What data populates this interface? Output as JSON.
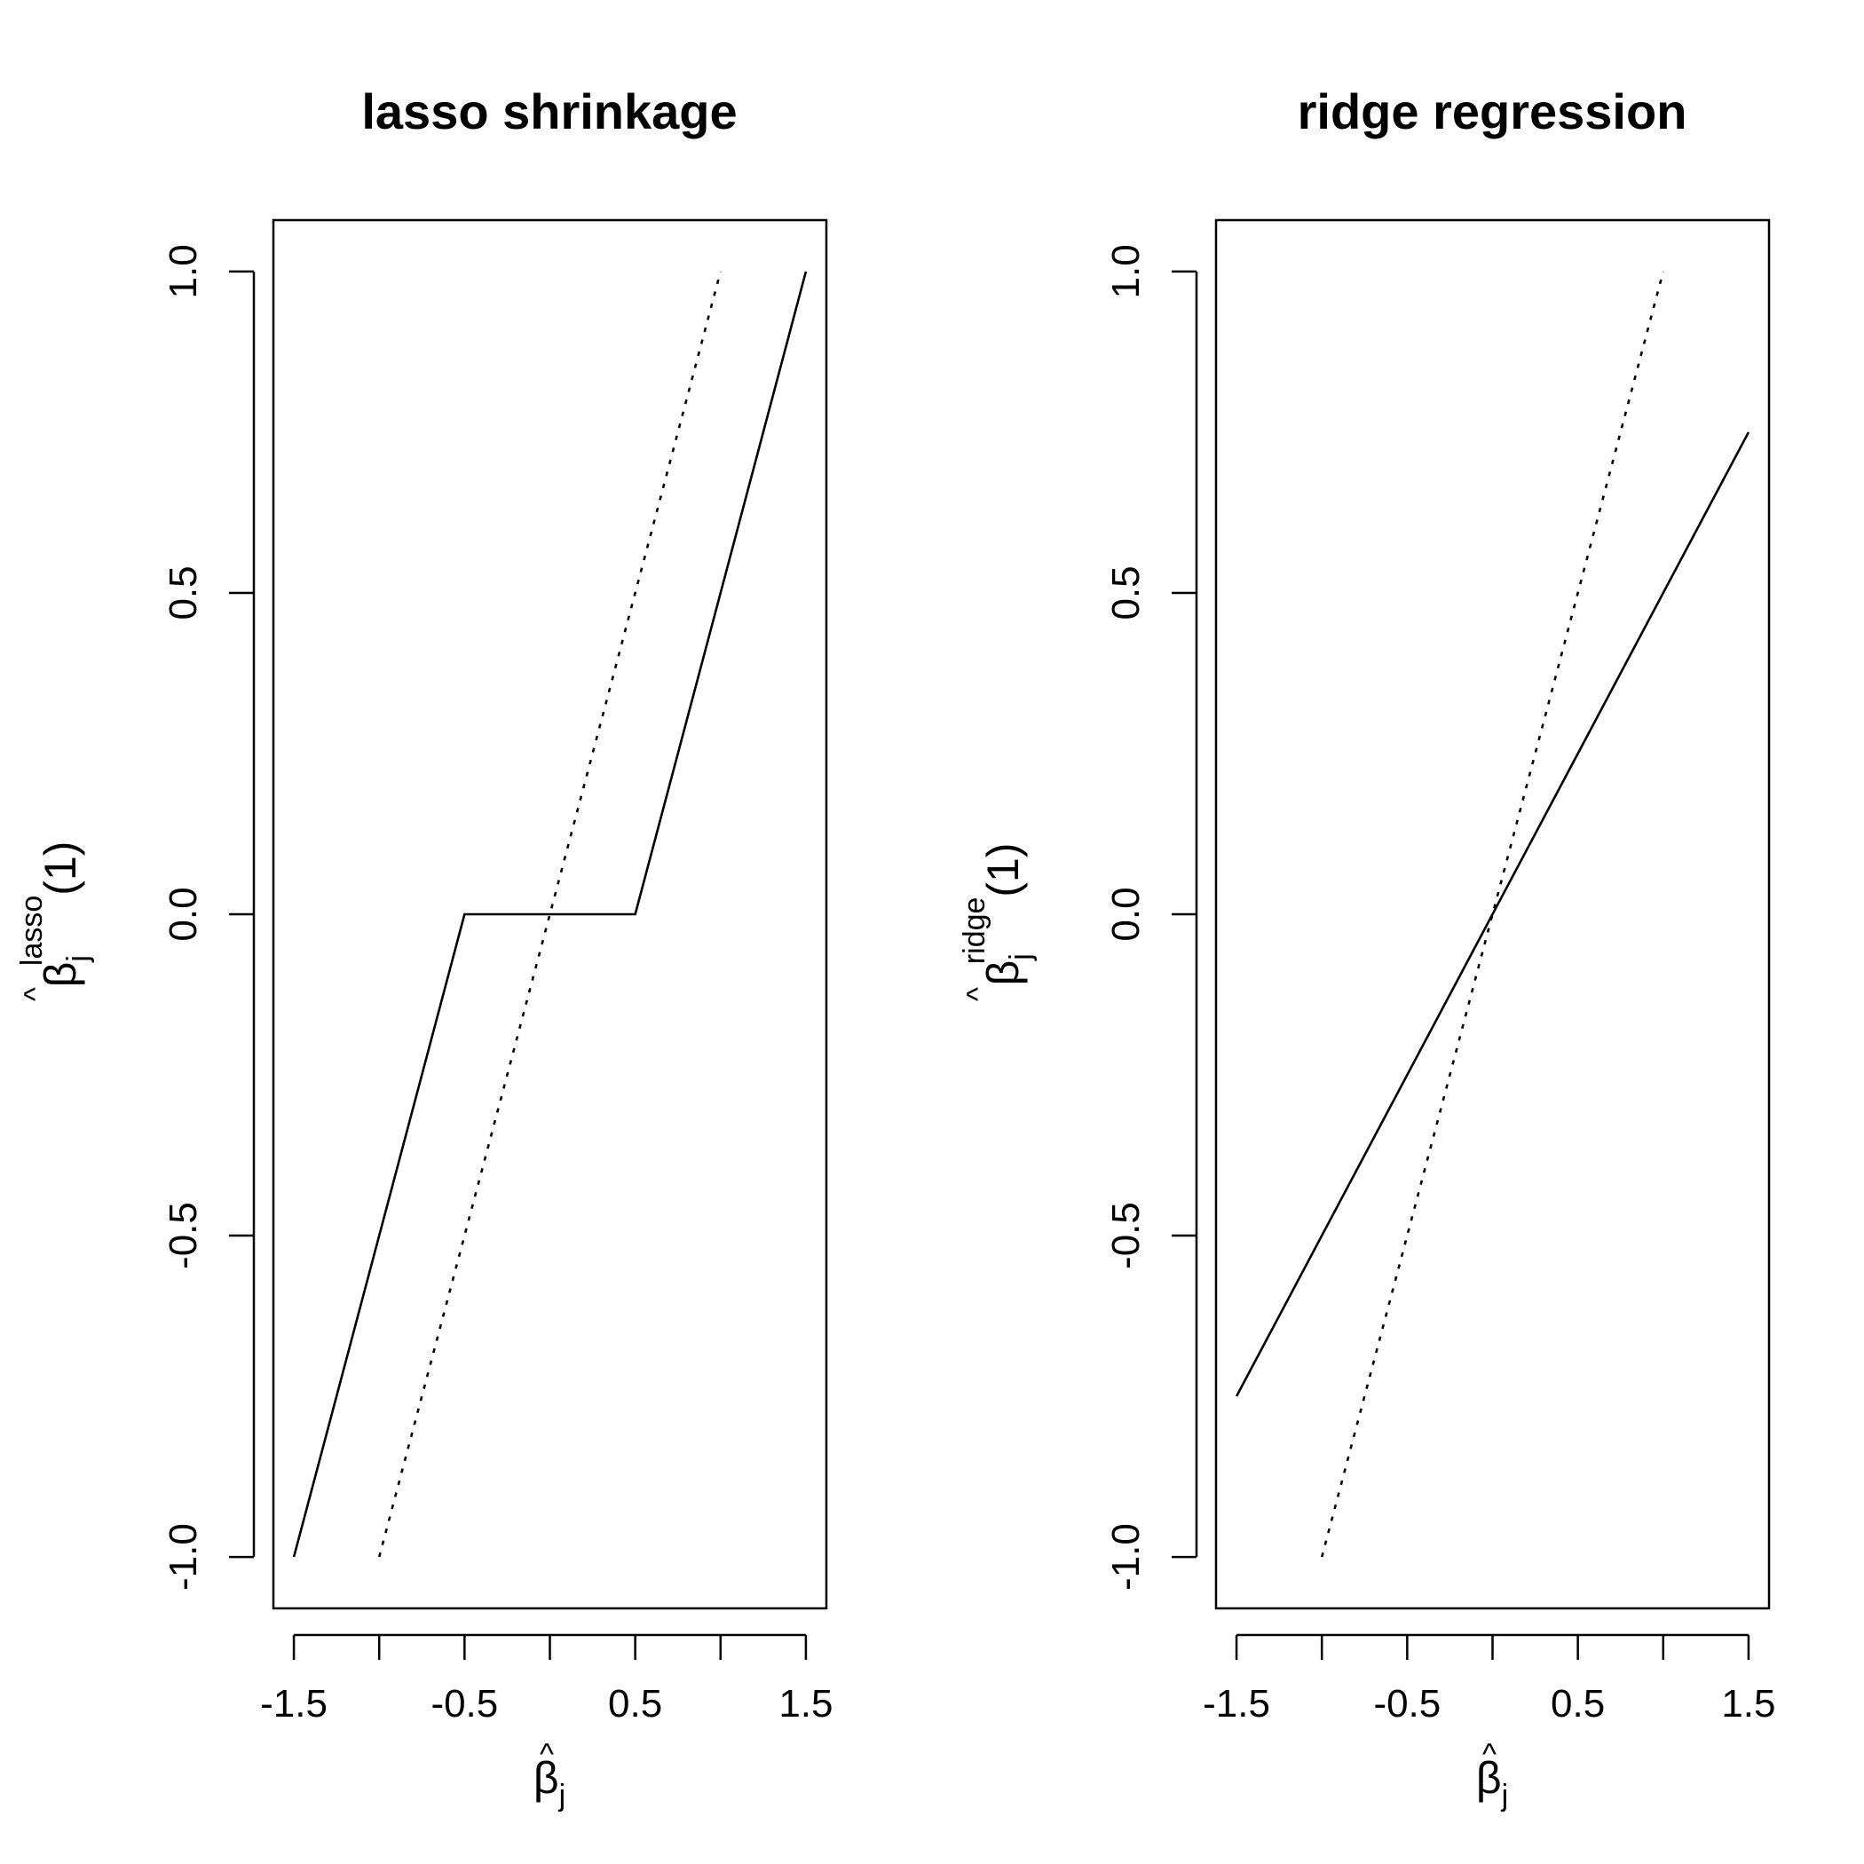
{
  "chart_data": [
    {
      "type": "line",
      "title": "lasso shrinkage",
      "xlabel": {
        "base": "β",
        "hat": "^",
        "sub": "j"
      },
      "ylabel": {
        "base": "β",
        "hat": "^",
        "sub": "j",
        "sup": "lasso",
        "arg": "(1)"
      },
      "xlim": [
        -1.62,
        1.62
      ],
      "ylim": [
        -1.08,
        1.08
      ],
      "xticks": [
        -1.5,
        -1.0,
        -0.5,
        0.0,
        0.5,
        1.0,
        1.5
      ],
      "xtick_labels": [
        "-1.5",
        "",
        "-0.5",
        "",
        "0.5",
        "",
        "1.5"
      ],
      "yticks": [
        -1.0,
        -0.5,
        0.0,
        0.5,
        1.0
      ],
      "ytick_labels": [
        "-1.0",
        "-0.5",
        "0.0",
        "0.5",
        "1.0"
      ],
      "grid": false,
      "series": [
        {
          "style": "solid",
          "x": [
            -1.5,
            -0.52,
            -0.5,
            0.5,
            0.52,
            1.5
          ],
          "y": [
            -1.0,
            -0.02,
            0.0,
            0.0,
            0.02,
            1.0
          ]
        },
        {
          "style": "dotted",
          "x": [
            -1.0,
            1.0
          ],
          "y": [
            -1.0,
            1.0
          ]
        }
      ]
    },
    {
      "type": "line",
      "title": "ridge regression",
      "xlabel": {
        "base": "β",
        "hat": "^",
        "sub": "j"
      },
      "ylabel": {
        "base": "β",
        "hat": "^",
        "sub": "j",
        "sup": "ridge",
        "arg": "(1)"
      },
      "xlim": [
        -1.62,
        1.62
      ],
      "ylim": [
        -1.08,
        1.08
      ],
      "xticks": [
        -1.5,
        -1.0,
        -0.5,
        0.0,
        0.5,
        1.0,
        1.5
      ],
      "xtick_labels": [
        "-1.5",
        "",
        "-0.5",
        "",
        "0.5",
        "",
        "1.5"
      ],
      "yticks": [
        -1.0,
        -0.5,
        0.0,
        0.5,
        1.0
      ],
      "ytick_labels": [
        "-1.0",
        "-0.5",
        "0.0",
        "0.5",
        "1.0"
      ],
      "grid": false,
      "series": [
        {
          "style": "solid",
          "x": [
            -1.5,
            1.5
          ],
          "y": [
            -0.75,
            0.75
          ]
        },
        {
          "style": "dotted",
          "x": [
            -1.0,
            1.0
          ],
          "y": [
            -1.0,
            1.0
          ]
        }
      ]
    }
  ]
}
